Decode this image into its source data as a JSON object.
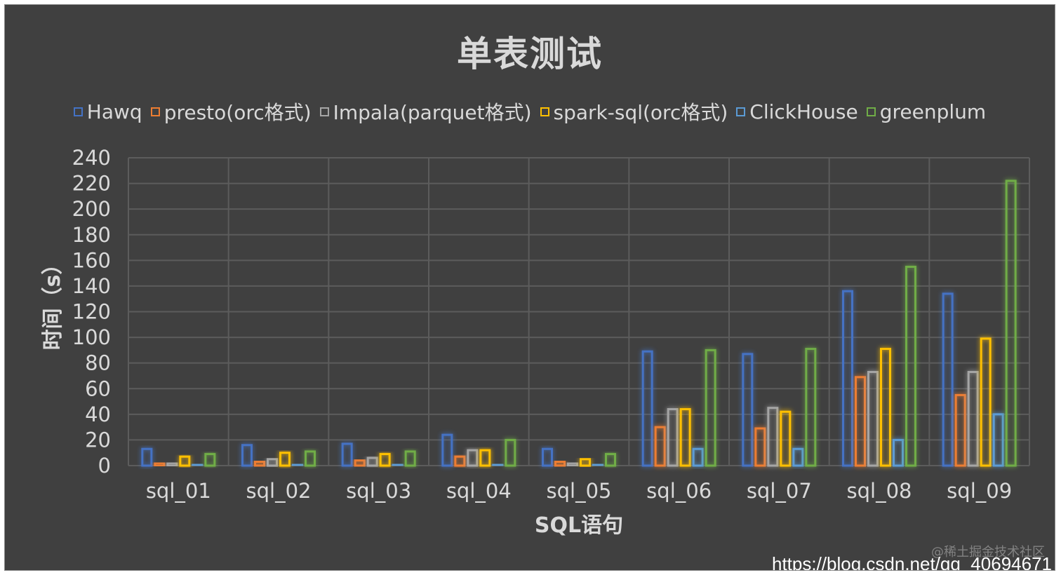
{
  "chart_data": {
    "type": "bar",
    "title": "单表测试",
    "xlabel": "SQL语句",
    "ylabel": "时间（s）",
    "ylim": [
      0,
      240
    ],
    "yticks": [
      0,
      20,
      40,
      60,
      80,
      100,
      120,
      140,
      160,
      180,
      200,
      220,
      240
    ],
    "grid": true,
    "legend_position": "top",
    "categories": [
      "sql_01",
      "sql_02",
      "sql_03",
      "sql_04",
      "sql_05",
      "sql_06",
      "sql_07",
      "sql_08",
      "sql_09"
    ],
    "series": [
      {
        "name": "Hawq",
        "color": "#4472c4",
        "values": [
          13,
          16,
          17,
          24,
          13,
          89,
          87,
          136,
          134
        ]
      },
      {
        "name": "presto(orc格式)",
        "color": "#ed7d31",
        "values": [
          2,
          3,
          4,
          7,
          3,
          30,
          29,
          69,
          55
        ]
      },
      {
        "name": "Impala(parquet格式)",
        "color": "#a5a5a5",
        "values": [
          2,
          5,
          6,
          12,
          2,
          44,
          45,
          73,
          73
        ]
      },
      {
        "name": "spark-sql(orc格式)",
        "color": "#ffc000",
        "values": [
          7,
          10,
          9,
          12,
          5,
          44,
          42,
          91,
          99
        ]
      },
      {
        "name": "ClickHouse",
        "color": "#5b9bd5",
        "values": [
          1,
          1,
          1,
          1,
          1,
          13,
          13,
          20,
          40
        ]
      },
      {
        "name": "greenplum",
        "color": "#70ad47",
        "values": [
          9,
          11,
          11,
          20,
          9,
          90,
          91,
          155,
          222
        ]
      }
    ]
  },
  "watermark": {
    "faint_text": "@稀土掘金技术社区",
    "url_text": "https://blog.csdn.net/qq_40694671"
  }
}
